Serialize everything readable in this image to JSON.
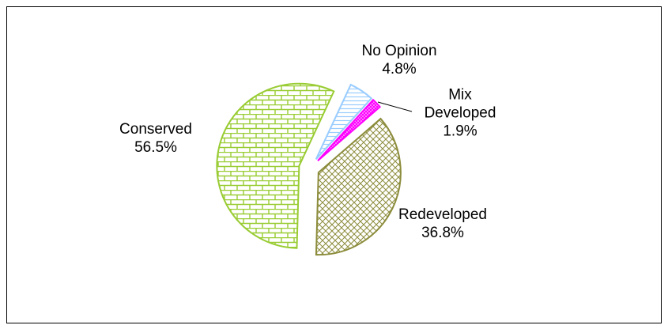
{
  "chart_data": {
    "type": "pie",
    "categories": [
      "No Opinion",
      "Mix Developed",
      "Redeveloped",
      "Conserved"
    ],
    "values": [
      4.8,
      1.9,
      36.8,
      56.5
    ],
    "value_labels": [
      "4.8%",
      "1.9%",
      "36.8%",
      "56.5%"
    ],
    "colors": [
      "#99ccff",
      "#ff00ff",
      "#8c8c3c",
      "#99cc33"
    ],
    "patterns": [
      "horizontal",
      "dots",
      "crosshatch",
      "brick"
    ]
  }
}
